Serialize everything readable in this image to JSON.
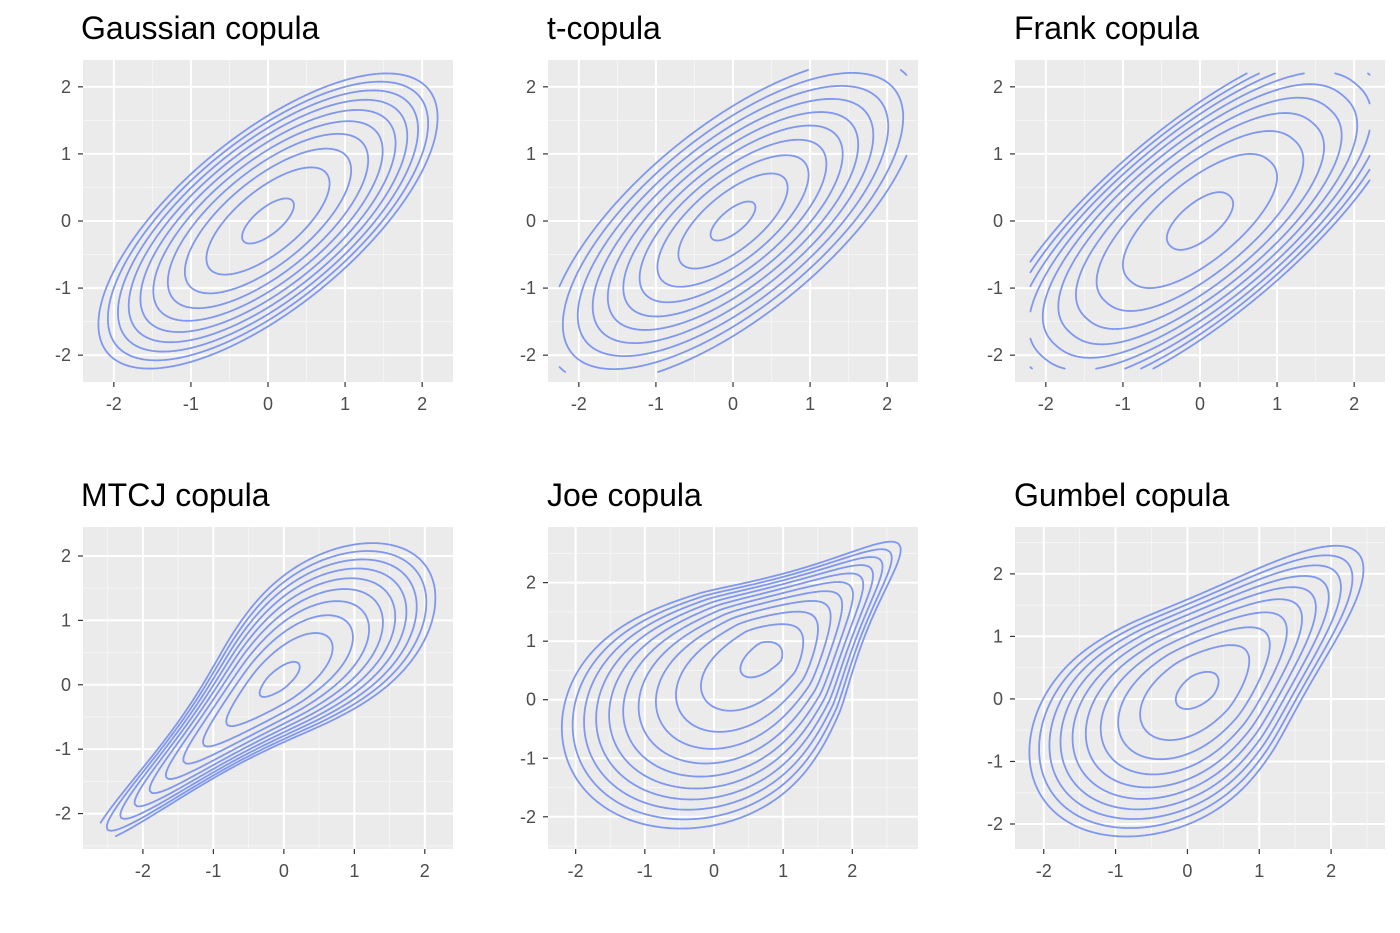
{
  "colors": {
    "panel_background": "#ebebeb",
    "grid_major": "#ffffff",
    "grid_minor": "#f5f5f5",
    "tick": "#333333",
    "tick_text": "#4d4d4d",
    "contour": "#7f97ee"
  },
  "chart_data": [
    {
      "type": "contour",
      "title": "Gaussian copula",
      "xlim": [
        -2.4,
        2.4
      ],
      "ylim": [
        -2.4,
        2.4
      ],
      "xticks": [
        -2,
        -1,
        0,
        1,
        2
      ],
      "yticks": [
        -2,
        -1,
        0,
        1,
        2
      ],
      "xticklabels": [
        "-2",
        "-1",
        "0",
        "1",
        "2"
      ],
      "yticklabels": [
        "-2",
        "-1",
        "0",
        "1",
        "2"
      ],
      "outer_extent": {
        "x": [
          -2.2,
          2.2
        ],
        "y": [
          -2.2,
          2.2
        ]
      },
      "peak": [
        0,
        0
      ],
      "levels": 10,
      "correlation": 0.7,
      "grid": true
    },
    {
      "type": "contour",
      "title": "t-copula",
      "xlim": [
        -2.4,
        2.4
      ],
      "ylim": [
        -2.4,
        2.4
      ],
      "xticks": [
        -2,
        -1,
        0,
        1,
        2
      ],
      "yticks": [
        -2,
        -1,
        0,
        1,
        2
      ],
      "xticklabels": [
        "-2",
        "-1",
        "0",
        "1",
        "2"
      ],
      "yticklabels": [
        "-2",
        "-1",
        "0",
        "1",
        "2"
      ],
      "outer_extent": {
        "x": [
          -2.25,
          2.25
        ],
        "y": [
          -2.25,
          2.25
        ]
      },
      "peak": [
        0,
        0
      ],
      "levels": 10,
      "correlation": 0.7,
      "grid": true
    },
    {
      "type": "contour",
      "title": "Frank copula",
      "xlim": [
        -2.4,
        2.4
      ],
      "ylim": [
        -2.4,
        2.4
      ],
      "xticks": [
        -2,
        -1,
        0,
        1,
        2
      ],
      "yticks": [
        -2,
        -1,
        0,
        1,
        2
      ],
      "xticklabels": [
        "-2",
        "-1",
        "0",
        "1",
        "2"
      ],
      "yticklabels": [
        "-2",
        "-1",
        "0",
        "1",
        "2"
      ],
      "outer_extent": {
        "x": [
          -2.2,
          2.2
        ],
        "y": [
          -2.2,
          2.2
        ]
      },
      "peak": [
        0,
        0
      ],
      "levels": 10,
      "correlation": 0.7,
      "grid": true
    },
    {
      "type": "contour",
      "title": "MTCJ copula",
      "xlim": [
        -2.85,
        2.4
      ],
      "ylim": [
        -2.55,
        2.45
      ],
      "xticks": [
        -2,
        -1,
        0,
        1,
        2
      ],
      "yticks": [
        -2,
        -1,
        0,
        1,
        2
      ],
      "xticklabels": [
        "-2",
        "-1",
        "0",
        "1",
        "2"
      ],
      "yticklabels": [
        "-2",
        "-1",
        "0",
        "1",
        "2"
      ],
      "outer_extent": {
        "x": [
          -2.6,
          2.15
        ],
        "y": [
          -2.35,
          2.2
        ]
      },
      "peak": [
        -0.4,
        -0.4
      ],
      "levels": 10,
      "grid": true
    },
    {
      "type": "contour",
      "title": "Joe copula",
      "xlim": [
        -2.4,
        2.95
      ],
      "ylim": [
        -2.55,
        2.95
      ],
      "xticks": [
        -2,
        -1,
        0,
        1,
        2
      ],
      "yticks": [
        -2,
        -1,
        0,
        1,
        2
      ],
      "xticklabels": [
        "-2",
        "-1",
        "0",
        "1",
        "2"
      ],
      "yticklabels": [
        "-2",
        "-1",
        "0",
        "1",
        "2"
      ],
      "outer_extent": {
        "x": [
          -2.2,
          2.7
        ],
        "y": [
          -2.2,
          2.7
        ]
      },
      "peak": [
        0.6,
        0.6
      ],
      "levels": 11,
      "grid": true
    },
    {
      "type": "contour",
      "title": "Gumbel copula",
      "xlim": [
        -2.4,
        2.75
      ],
      "ylim": [
        -2.4,
        2.75
      ],
      "xticks": [
        -2,
        -1,
        0,
        1,
        2
      ],
      "yticks": [
        -2,
        -1,
        0,
        1,
        2
      ],
      "xticklabels": [
        "-2",
        "-1",
        "0",
        "1",
        "2"
      ],
      "yticklabels": [
        "-2",
        "-1",
        "0",
        "1",
        "2"
      ],
      "outer_extent": {
        "x": [
          -2.2,
          2.45
        ],
        "y": [
          -2.2,
          2.45
        ]
      },
      "peak": [
        0.1,
        0.1
      ],
      "levels": 10,
      "grid": true
    }
  ]
}
